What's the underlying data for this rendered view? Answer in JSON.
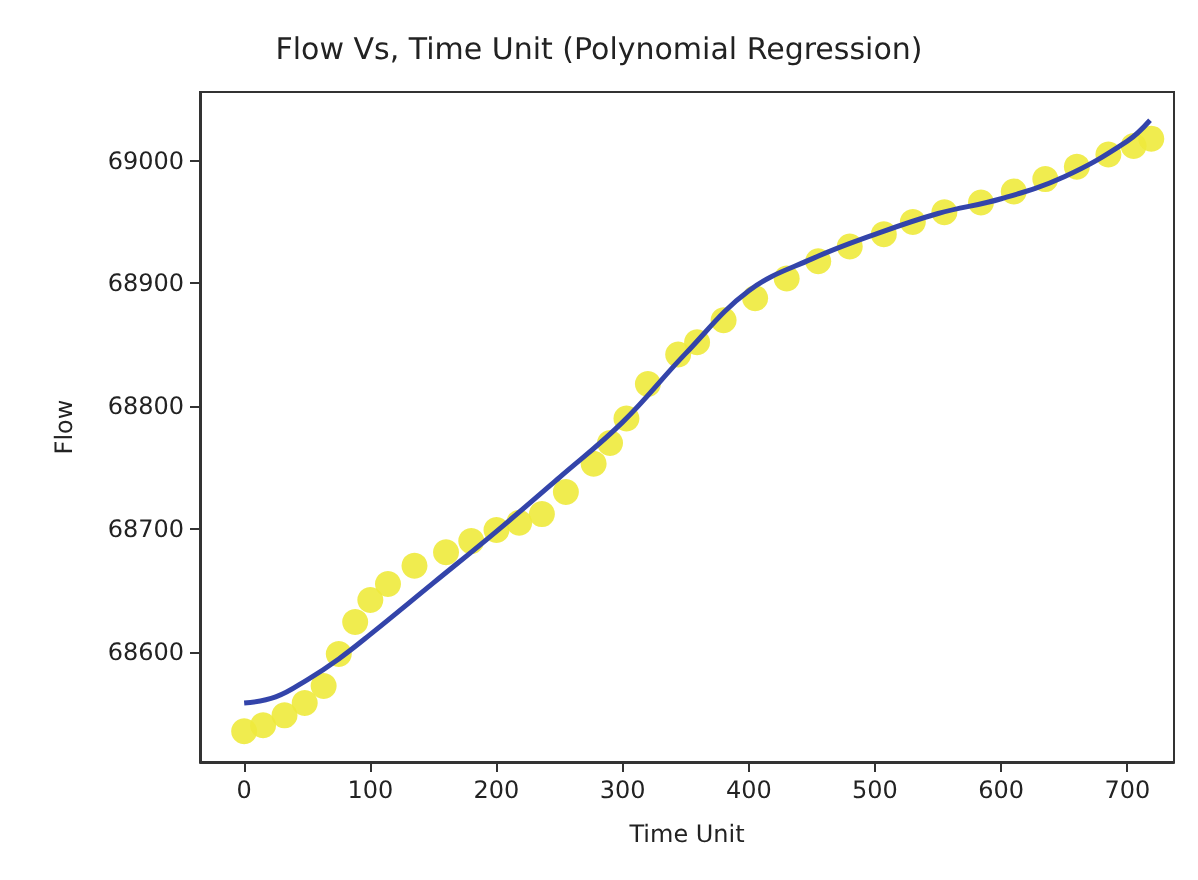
{
  "chart_data": {
    "type": "scatter",
    "title": "Flow Vs, Time Unit (Polynomial Regression)",
    "xlabel": "Time Unit",
    "ylabel": "Flow",
    "xlim": [
      -35,
      737
    ],
    "ylim": [
      68510,
      69056
    ],
    "xticks": [
      0,
      100,
      200,
      300,
      400,
      500,
      600,
      700
    ],
    "yticks": [
      68600,
      68700,
      68800,
      68900,
      69000
    ],
    "grid": false,
    "series": [
      {
        "color": "#eeea3c",
        "marker": "circle",
        "x": [
          0,
          15,
          32,
          48,
          63,
          75,
          88,
          100,
          114,
          135,
          160,
          180,
          200,
          218,
          236,
          255,
          277,
          290,
          303,
          320,
          344,
          359,
          380,
          405,
          430,
          455,
          480,
          507,
          530,
          555,
          584,
          610,
          635,
          660,
          685,
          705,
          719
        ],
        "values": [
          68535,
          68540,
          68548,
          68558,
          68572,
          68598,
          68624,
          68642,
          68655,
          68670,
          68681,
          68690,
          68699,
          68705,
          68712,
          68730,
          68753,
          68770,
          68790,
          68818,
          68842,
          68852,
          68870,
          68888,
          68904,
          68918,
          68930,
          68940,
          68950,
          68958,
          68966,
          68975,
          68985,
          68995,
          69005,
          69012,
          69018
        ]
      },
      {
        "type": "line",
        "color": "#3344aa",
        "marker": "none",
        "x": [
          0,
          25,
          50,
          75,
          100,
          150,
          200,
          250,
          300,
          350,
          400,
          450,
          500,
          550,
          600,
          650,
          700,
          718
        ],
        "values": [
          68558,
          68563,
          68577,
          68594,
          68614,
          68656,
          68698,
          68742,
          68787,
          68843,
          68894,
          68920,
          68940,
          68957,
          68969,
          68987,
          69016,
          69033
        ]
      }
    ]
  }
}
